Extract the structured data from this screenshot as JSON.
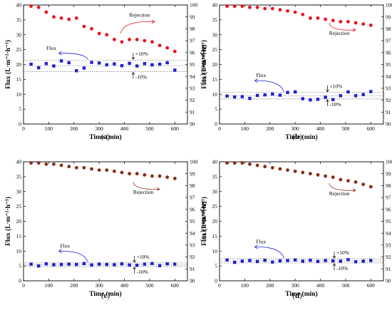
{
  "chart_data": [
    {
      "type": "scatter",
      "panel_label": "(a)",
      "xlabel": "Time (min)",
      "ylabel_left": "Flux (L·m⁻²·h⁻¹)",
      "ylabel_right": "Rejection (%)",
      "xlim": [
        0,
        650
      ],
      "ylim_left": [
        0,
        40
      ],
      "ylim_right": [
        90,
        100
      ],
      "xticks": [
        0,
        100,
        200,
        300,
        400,
        500,
        600
      ],
      "yticks_left": [
        0,
        5,
        10,
        15,
        20,
        25,
        30,
        35,
        40
      ],
      "yticks_right": [
        90,
        91,
        92,
        93,
        94,
        95,
        96,
        97,
        98,
        99,
        100
      ],
      "flux_band": {
        "center": 19.6,
        "upper": 21.5,
        "lower": 17.6,
        "upper_label": "+10%",
        "lower_label": "-10%",
        "arrow_x": 435
      },
      "annotations": {
        "flux": "Flux",
        "rejection": "Rejection"
      },
      "series": [
        {
          "name": "Flux",
          "axis": "left",
          "color": "#1f1fd0",
          "marker": "square",
          "x": [
            30,
            60,
            90,
            120,
            150,
            180,
            210,
            240,
            270,
            300,
            330,
            360,
            390,
            420,
            450,
            480,
            510,
            540,
            570,
            600
          ],
          "y": [
            20.1,
            18.9,
            20.3,
            19.5,
            21.2,
            20.6,
            17.9,
            18.8,
            20.7,
            20.5,
            19.9,
            20.2,
            19.6,
            20.4,
            19.5,
            20.3,
            19.9,
            20.1,
            20.6,
            18.1
          ]
        },
        {
          "name": "Rejection",
          "axis": "right",
          "color": "#e8131a",
          "marker": "circle",
          "x": [
            30,
            60,
            90,
            120,
            150,
            180,
            210,
            240,
            270,
            300,
            330,
            360,
            390,
            420,
            450,
            480,
            510,
            540,
            570,
            600
          ],
          "y": [
            99.9,
            99.8,
            99.4,
            99.0,
            98.9,
            98.8,
            98.9,
            98.2,
            98.0,
            97.6,
            97.5,
            97.1,
            96.9,
            97.1,
            97.1,
            97.0,
            96.9,
            96.6,
            96.4,
            96.1
          ]
        }
      ]
    },
    {
      "type": "scatter",
      "panel_label": "(b)",
      "xlabel": "Time (min)",
      "ylabel_left": "Flux (L·m⁻²·h⁻¹)",
      "ylabel_right": "Rejection (%)",
      "xlim": [
        0,
        650
      ],
      "ylim_left": [
        0,
        40
      ],
      "ylim_right": [
        90,
        100
      ],
      "xticks": [
        0,
        100,
        200,
        300,
        400,
        500,
        600
      ],
      "yticks_left": [
        0,
        5,
        10,
        15,
        20,
        25,
        30,
        35,
        40
      ],
      "yticks_right": [
        90,
        91,
        92,
        93,
        94,
        95,
        96,
        97,
        98,
        99,
        100
      ],
      "flux_band": {
        "center": 9.5,
        "upper": 10.6,
        "lower": 8.4,
        "upper_label": "+10%",
        "lower_label": "-10%",
        "arrow_x": 428
      },
      "annotations": {
        "flux": "Flux",
        "rejection": "Rejection"
      },
      "series": [
        {
          "name": "Flux",
          "axis": "left",
          "color": "#1f1fd0",
          "marker": "square",
          "x": [
            30,
            60,
            90,
            120,
            150,
            180,
            210,
            240,
            270,
            300,
            330,
            360,
            390,
            420,
            450,
            480,
            510,
            540,
            570,
            600
          ],
          "y": [
            9.4,
            9.1,
            9.2,
            8.6,
            9.6,
            9.8,
            10.1,
            9.7,
            10.6,
            10.8,
            8.5,
            8.1,
            8.3,
            9.0,
            8.2,
            9.5,
            10.8,
            9.5,
            9.9,
            10.9
          ]
        },
        {
          "name": "Rejection",
          "axis": "right",
          "color": "#e8131a",
          "marker": "circle",
          "x": [
            30,
            60,
            90,
            120,
            150,
            180,
            210,
            240,
            270,
            300,
            330,
            360,
            390,
            420,
            450,
            480,
            510,
            540,
            570,
            600
          ],
          "y": [
            99.9,
            99.9,
            99.9,
            99.8,
            99.8,
            99.7,
            99.7,
            99.6,
            99.5,
            99.4,
            99.2,
            98.9,
            98.9,
            98.8,
            98.7,
            98.6,
            98.6,
            98.5,
            98.4,
            98.3
          ]
        }
      ]
    },
    {
      "type": "scatter",
      "panel_label": "(c)",
      "xlabel": "Time (min)",
      "ylabel_left": "Flux (L·m⁻²·h⁻¹)",
      "ylabel_right": "Rejection (%)",
      "xlim": [
        0,
        650
      ],
      "ylim_left": [
        0,
        40
      ],
      "ylim_right": [
        90,
        100
      ],
      "xticks": [
        0,
        100,
        200,
        300,
        400,
        500,
        600
      ],
      "yticks_left": [
        0,
        5,
        10,
        15,
        20,
        25,
        30,
        35,
        40
      ],
      "yticks_right": [
        90,
        91,
        92,
        93,
        94,
        95,
        96,
        97,
        98,
        99,
        100
      ],
      "flux_band": {
        "center": 5.4,
        "upper": 6.0,
        "lower": 4.8,
        "upper_label": "+10%",
        "lower_label": "-10%",
        "arrow_x": 440
      },
      "annotations": {
        "flux": "Flux",
        "rejection": "Rejection"
      },
      "series": [
        {
          "name": "Flux",
          "axis": "left",
          "color": "#1f1fd0",
          "marker": "square",
          "x": [
            30,
            60,
            90,
            120,
            150,
            180,
            210,
            240,
            270,
            300,
            330,
            360,
            390,
            420,
            450,
            480,
            510,
            540,
            570,
            600
          ],
          "y": [
            5.6,
            5.0,
            5.7,
            5.4,
            5.5,
            5.6,
            5.5,
            5.8,
            5.3,
            5.6,
            5.5,
            5.4,
            5.7,
            5.3,
            5.2,
            5.6,
            5.8,
            5.1,
            5.7,
            5.6
          ]
        },
        {
          "name": "Rejection",
          "axis": "right",
          "color": "#8b2a14",
          "marker": "circle",
          "x": [
            30,
            60,
            90,
            120,
            150,
            180,
            210,
            240,
            270,
            300,
            330,
            360,
            390,
            420,
            450,
            480,
            510,
            540,
            570,
            600
          ],
          "y": [
            99.9,
            99.9,
            99.8,
            99.8,
            99.7,
            99.6,
            99.5,
            99.5,
            99.4,
            99.3,
            99.3,
            99.2,
            99.1,
            99.0,
            99.0,
            98.9,
            98.8,
            98.8,
            98.7,
            98.6
          ]
        }
      ]
    },
    {
      "type": "scatter",
      "panel_label": "(d)",
      "xlabel": "Time (min)",
      "ylabel_left": "Flux (L·m⁻²·h⁻¹)",
      "ylabel_right": "Rejection (%)",
      "xlim": [
        0,
        650
      ],
      "ylim_left": [
        0,
        40
      ],
      "ylim_right": [
        90,
        100
      ],
      "xticks": [
        0,
        100,
        200,
        300,
        400,
        500,
        600
      ],
      "yticks_left": [
        0,
        5,
        10,
        15,
        20,
        25,
        30,
        35,
        40
      ],
      "yticks_right": [
        90,
        91,
        92,
        93,
        94,
        95,
        96,
        97,
        98,
        99,
        100
      ],
      "flux_band": {
        "center": 6.7,
        "upper": 7.4,
        "lower": 6.0,
        "upper_label": "+10%",
        "lower_label": "-10%",
        "arrow_x": 455
      },
      "annotations": {
        "flux": "Flux",
        "rejection": "Rejection"
      },
      "series": [
        {
          "name": "Flux",
          "axis": "left",
          "color": "#1f1fd0",
          "marker": "square",
          "x": [
            30,
            60,
            90,
            120,
            150,
            180,
            210,
            240,
            270,
            300,
            330,
            360,
            390,
            420,
            450,
            480,
            510,
            540,
            570,
            600
          ],
          "y": [
            7.0,
            6.2,
            6.6,
            6.8,
            6.5,
            6.9,
            6.3,
            6.7,
            6.8,
            7.0,
            6.6,
            6.9,
            6.5,
            6.8,
            6.7,
            6.6,
            7.1,
            6.4,
            6.6,
            6.8
          ]
        },
        {
          "name": "Rejection",
          "axis": "right",
          "color": "#8b2a14",
          "marker": "circle",
          "x": [
            30,
            60,
            90,
            120,
            150,
            180,
            210,
            240,
            270,
            300,
            330,
            360,
            390,
            420,
            450,
            480,
            510,
            540,
            570,
            600
          ],
          "y": [
            99.9,
            99.9,
            99.9,
            99.8,
            99.7,
            99.6,
            99.5,
            99.4,
            99.3,
            99.2,
            99.1,
            99.0,
            98.9,
            98.8,
            98.7,
            98.5,
            98.4,
            98.3,
            98.1,
            97.9
          ]
        }
      ]
    }
  ]
}
